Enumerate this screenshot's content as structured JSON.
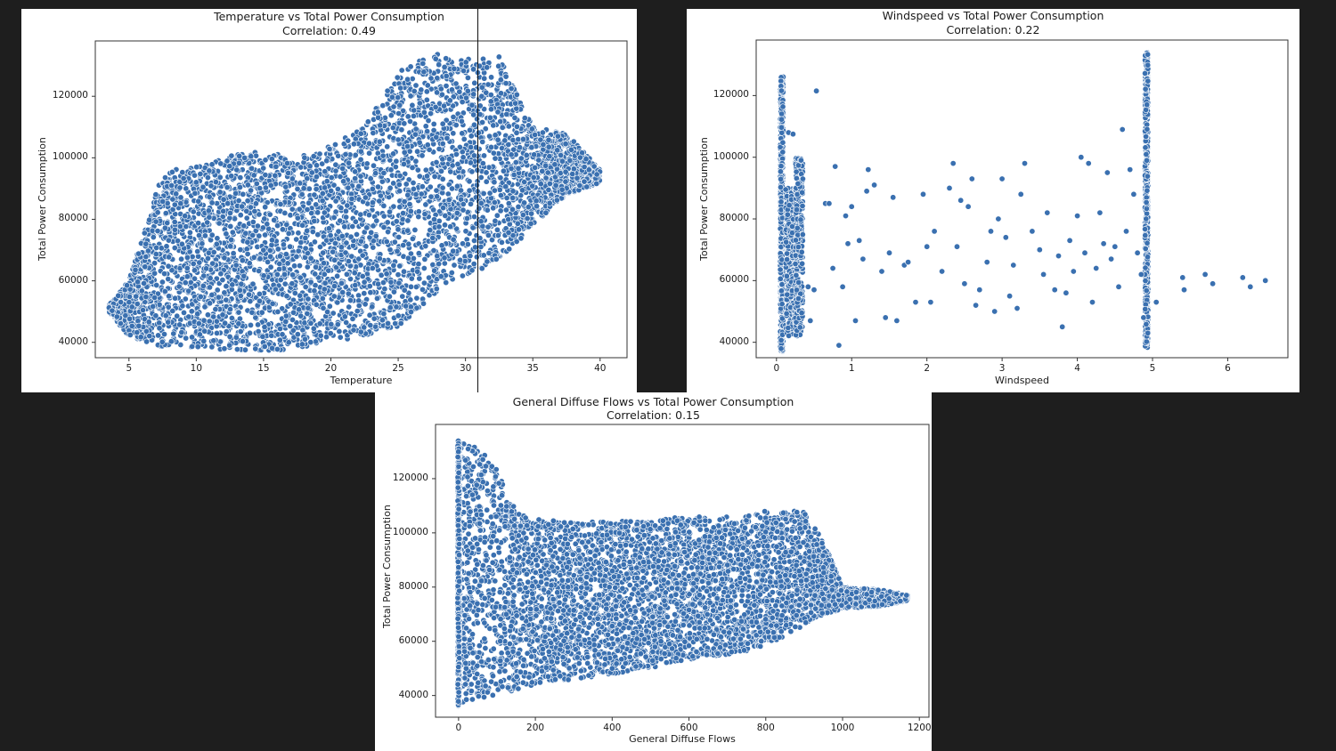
{
  "window": {
    "background": "#1e1e1e"
  },
  "style": {
    "point_fill": "#3a70b0",
    "point_stroke": "#ffffff",
    "axis_color": "#333333"
  },
  "chart_data": [
    {
      "id": "temperature",
      "type": "scatter",
      "title": "Temperature vs Total Power Consumption",
      "subtitle": "Correlation: 0.49",
      "correlation": 0.49,
      "xlabel": "Temperature",
      "ylabel": "Total Power Consumption",
      "xticks": [
        5,
        10,
        15,
        20,
        25,
        30,
        35,
        40
      ],
      "yticks": [
        40000,
        60000,
        80000,
        100000,
        120000
      ],
      "xlim": [
        2.5,
        42
      ],
      "ylim": [
        35000,
        138000
      ],
      "grid": false,
      "legend": null,
      "envelope": {
        "x": [
          3.5,
          5,
          7.5,
          10,
          12.5,
          15,
          17.5,
          20,
          22.5,
          25,
          27.5,
          30,
          32.5,
          35,
          37.5,
          40
        ],
        "y_min": [
          50000,
          42000,
          38500,
          38000,
          37500,
          37000,
          38000,
          40000,
          42000,
          45000,
          55000,
          62000,
          66000,
          78000,
          88000,
          92000
        ],
        "y_max": [
          52000,
          60000,
          96000,
          97000,
          101000,
          102000,
          100000,
          104000,
          110000,
          128000,
          134000,
          132000,
          133000,
          110000,
          108000,
          96000
        ]
      }
    },
    {
      "id": "windspeed",
      "type": "scatter",
      "title": "Windspeed vs Total Power Consumption",
      "subtitle": "Correlation: 0.22",
      "correlation": 0.22,
      "xlabel": "Windspeed",
      "ylabel": "Total Power Consumption",
      "xticks": [
        0,
        1,
        2,
        3,
        4,
        5,
        6
      ],
      "yticks": [
        40000,
        60000,
        80000,
        100000,
        120000
      ],
      "xlim": [
        -0.27,
        6.8
      ],
      "ylim": [
        35000,
        138000
      ],
      "grid": false,
      "legend": null,
      "clusters": [
        {
          "x": 0.07,
          "x_spread": 0.02,
          "y_min": 37000,
          "y_max": 127000,
          "n": 500
        },
        {
          "x": 0.2,
          "x_spread": 0.08,
          "y_min": 42000,
          "y_max": 90000,
          "n": 350
        },
        {
          "x": 0.3,
          "x_spread": 0.05,
          "y_min": 42000,
          "y_max": 100000,
          "n": 250
        },
        {
          "x": 4.92,
          "x_spread": 0.02,
          "y_min": 38000,
          "y_max": 134000,
          "n": 600
        }
      ],
      "sparse_points": [
        [
          0.53,
          121500
        ],
        [
          0.16,
          108000
        ],
        [
          0.22,
          107500
        ],
        [
          0.35,
          93000
        ],
        [
          0.42,
          58000
        ],
        [
          0.45,
          47000
        ],
        [
          0.5,
          57000
        ],
        [
          0.65,
          85000
        ],
        [
          0.7,
          85000
        ],
        [
          0.75,
          64000
        ],
        [
          0.78,
          97000
        ],
        [
          0.83,
          39000
        ],
        [
          0.88,
          58000
        ],
        [
          0.92,
          81000
        ],
        [
          0.95,
          72000
        ],
        [
          1.0,
          84000
        ],
        [
          1.05,
          47000
        ],
        [
          1.1,
          73000
        ],
        [
          1.15,
          67000
        ],
        [
          1.2,
          89000
        ],
        [
          1.22,
          96000
        ],
        [
          1.3,
          91000
        ],
        [
          1.4,
          63000
        ],
        [
          1.45,
          48000
        ],
        [
          1.5,
          69000
        ],
        [
          1.55,
          87000
        ],
        [
          1.6,
          47000
        ],
        [
          1.7,
          65000
        ],
        [
          1.75,
          66000
        ],
        [
          1.85,
          53000
        ],
        [
          1.95,
          88000
        ],
        [
          2.0,
          71000
        ],
        [
          2.05,
          53000
        ],
        [
          2.1,
          76000
        ],
        [
          2.2,
          63000
        ],
        [
          2.3,
          90000
        ],
        [
          2.35,
          98000
        ],
        [
          2.4,
          71000
        ],
        [
          2.45,
          86000
        ],
        [
          2.5,
          59000
        ],
        [
          2.55,
          84000
        ],
        [
          2.6,
          93000
        ],
        [
          2.65,
          52000
        ],
        [
          2.7,
          57000
        ],
        [
          2.8,
          66000
        ],
        [
          2.85,
          76000
        ],
        [
          2.9,
          50000
        ],
        [
          2.95,
          80000
        ],
        [
          3.0,
          93000
        ],
        [
          3.05,
          74000
        ],
        [
          3.1,
          55000
        ],
        [
          3.15,
          65000
        ],
        [
          3.2,
          51000
        ],
        [
          3.25,
          88000
        ],
        [
          3.3,
          98000
        ],
        [
          3.4,
          76000
        ],
        [
          3.5,
          70000
        ],
        [
          3.55,
          62000
        ],
        [
          3.6,
          82000
        ],
        [
          3.7,
          57000
        ],
        [
          3.75,
          68000
        ],
        [
          3.8,
          45000
        ],
        [
          3.85,
          56000
        ],
        [
          3.9,
          73000
        ],
        [
          3.95,
          63000
        ],
        [
          4.0,
          81000
        ],
        [
          4.05,
          100000
        ],
        [
          4.1,
          69000
        ],
        [
          4.15,
          98000
        ],
        [
          4.2,
          53000
        ],
        [
          4.25,
          64000
        ],
        [
          4.3,
          82000
        ],
        [
          4.35,
          72000
        ],
        [
          4.4,
          95000
        ],
        [
          4.45,
          67000
        ],
        [
          4.5,
          71000
        ],
        [
          4.55,
          58000
        ],
        [
          4.6,
          109000
        ],
        [
          4.65,
          76000
        ],
        [
          4.7,
          96000
        ],
        [
          4.75,
          88000
        ],
        [
          4.8,
          69000
        ],
        [
          4.85,
          62000
        ],
        [
          4.88,
          48000
        ],
        [
          5.05,
          53000
        ],
        [
          5.4,
          61000
        ],
        [
          5.42,
          57000
        ],
        [
          5.7,
          62000
        ],
        [
          5.8,
          59000
        ],
        [
          6.2,
          61000
        ],
        [
          6.3,
          58000
        ],
        [
          6.5,
          60000
        ]
      ]
    },
    {
      "id": "diffuse_flows",
      "type": "scatter",
      "title": "General Diffuse Flows vs Total Power Consumption",
      "subtitle": "Correlation: 0.15",
      "correlation": 0.15,
      "xlabel": "General Diffuse Flows",
      "ylabel": "Total Power Consumption",
      "xticks": [
        0,
        200,
        400,
        600,
        800,
        1000,
        1200
      ],
      "yticks": [
        40000,
        60000,
        80000,
        100000,
        120000
      ],
      "xlim": [
        -60,
        1225
      ],
      "ylim": [
        32000,
        140000
      ],
      "grid": false,
      "legend": null,
      "envelope": {
        "x": [
          0,
          50,
          100,
          150,
          200,
          300,
          400,
          500,
          600,
          700,
          800,
          850,
          900,
          950,
          1000,
          1100,
          1170
        ],
        "y_min": [
          36000,
          38000,
          40000,
          42000,
          44000,
          46000,
          48000,
          50000,
          53000,
          55000,
          58000,
          62000,
          66000,
          70000,
          72000,
          73000,
          75000
        ],
        "y_max": [
          134000,
          133000,
          124000,
          108000,
          105000,
          104000,
          104000,
          105000,
          106000,
          106000,
          108000,
          108000,
          108000,
          97000,
          80000,
          79000,
          77000
        ]
      }
    }
  ]
}
